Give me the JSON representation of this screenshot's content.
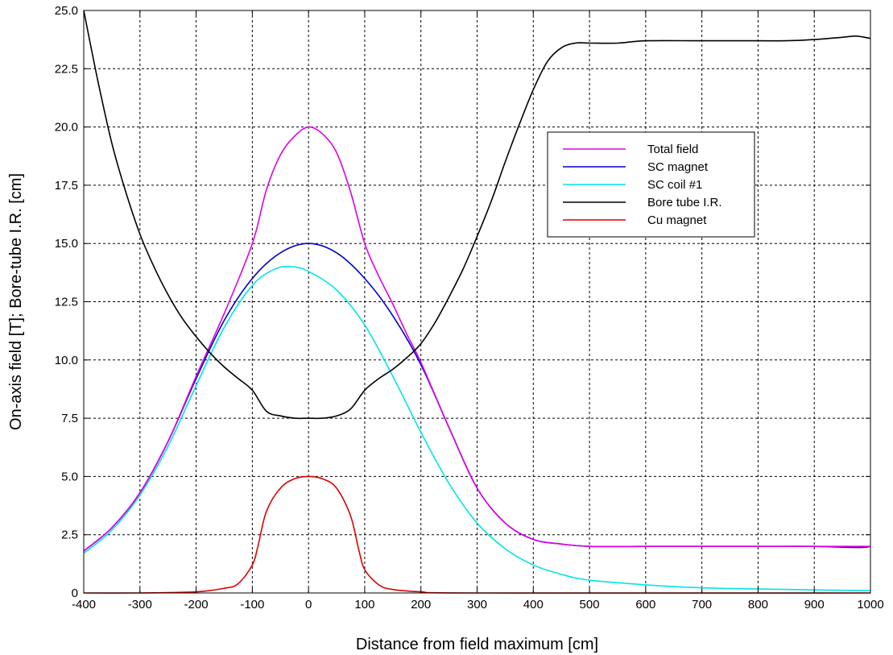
{
  "chart_data": {
    "type": "line",
    "title": "",
    "xlabel": "Distance from field maximum  [cm]",
    "ylabel": "On-axis field [T];  Bore-tube I.R. [cm]",
    "xlim": [
      -400,
      1000
    ],
    "ylim": [
      0,
      25
    ],
    "xticks": [
      -400,
      -300,
      -200,
      -100,
      0,
      100,
      200,
      300,
      400,
      500,
      600,
      700,
      800,
      900,
      1000
    ],
    "xtick_labels": [
      "-400",
      "-300",
      "-200",
      "-100",
      "0",
      "100",
      "200",
      "300",
      "400",
      "500",
      "600",
      "700",
      "800",
      "900",
      "1000"
    ],
    "yticks": [
      0,
      2.5,
      5,
      7.5,
      10,
      12.5,
      15,
      17.5,
      20,
      22.5,
      25
    ],
    "ytick_labels": [
      "0",
      "2.5",
      "5.0",
      "7.5",
      "10.0",
      "12.5",
      "15.0",
      "17.5",
      "20.0",
      "22.5",
      "25.0"
    ],
    "grid": true,
    "legend_position": "upper-right",
    "series": [
      {
        "name": "Total field",
        "color": "#e000e0",
        "points": [
          [
            -400,
            1.8
          ],
          [
            -350,
            2.8
          ],
          [
            -300,
            4.3
          ],
          [
            -250,
            6.5
          ],
          [
            -200,
            9.3
          ],
          [
            -150,
            12.0
          ],
          [
            -100,
            15.0
          ],
          [
            -75,
            17.3
          ],
          [
            -50,
            18.8
          ],
          [
            -25,
            19.6
          ],
          [
            0,
            20.0
          ],
          [
            25,
            19.7
          ],
          [
            50,
            18.9
          ],
          [
            75,
            17.2
          ],
          [
            100,
            15.0
          ],
          [
            125,
            13.6
          ],
          [
            150,
            12.4
          ],
          [
            175,
            11.1
          ],
          [
            200,
            9.9
          ],
          [
            250,
            7.1
          ],
          [
            300,
            4.5
          ],
          [
            350,
            3.0
          ],
          [
            400,
            2.3
          ],
          [
            450,
            2.1
          ],
          [
            500,
            2.0
          ],
          [
            600,
            2.0
          ],
          [
            700,
            2.0
          ],
          [
            800,
            2.0
          ],
          [
            900,
            2.0
          ],
          [
            1000,
            2.0
          ]
        ]
      },
      {
        "name": "SC magnet",
        "color": "#0000cc",
        "points": [
          [
            -400,
            1.8
          ],
          [
            -350,
            2.8
          ],
          [
            -300,
            4.3
          ],
          [
            -250,
            6.5
          ],
          [
            -200,
            9.2
          ],
          [
            -150,
            11.7
          ],
          [
            -100,
            13.5
          ],
          [
            -50,
            14.6
          ],
          [
            0,
            15.0
          ],
          [
            50,
            14.6
          ],
          [
            100,
            13.5
          ],
          [
            150,
            11.9
          ],
          [
            200,
            9.8
          ],
          [
            250,
            7.1
          ],
          [
            300,
            4.5
          ],
          [
            350,
            3.0
          ],
          [
            400,
            2.3
          ],
          [
            450,
            2.1
          ],
          [
            500,
            2.0
          ],
          [
            600,
            2.0
          ],
          [
            700,
            2.0
          ],
          [
            800,
            2.0
          ],
          [
            900,
            2.0
          ],
          [
            980,
            1.95
          ],
          [
            1000,
            2.0
          ]
        ]
      },
      {
        "name": "SC coil #1",
        "color": "#00e5e5",
        "points": [
          [
            -400,
            1.7
          ],
          [
            -350,
            2.7
          ],
          [
            -300,
            4.2
          ],
          [
            -250,
            6.3
          ],
          [
            -200,
            8.9
          ],
          [
            -150,
            11.4
          ],
          [
            -100,
            13.2
          ],
          [
            -60,
            13.9
          ],
          [
            -30,
            14.0
          ],
          [
            0,
            13.8
          ],
          [
            50,
            13.0
          ],
          [
            100,
            11.5
          ],
          [
            150,
            9.3
          ],
          [
            200,
            6.9
          ],
          [
            250,
            4.7
          ],
          [
            300,
            3.0
          ],
          [
            350,
            1.9
          ],
          [
            400,
            1.2
          ],
          [
            450,
            0.8
          ],
          [
            500,
            0.55
          ],
          [
            600,
            0.35
          ],
          [
            700,
            0.22
          ],
          [
            800,
            0.17
          ],
          [
            900,
            0.13
          ],
          [
            1000,
            0.1
          ]
        ]
      },
      {
        "name": "Bore tube I.R.",
        "color": "#000000",
        "points": [
          [
            -400,
            25.0
          ],
          [
            -375,
            22.0
          ],
          [
            -350,
            19.3
          ],
          [
            -325,
            17.2
          ],
          [
            -300,
            15.4
          ],
          [
            -275,
            14.0
          ],
          [
            -250,
            12.8
          ],
          [
            -225,
            11.8
          ],
          [
            -200,
            11.0
          ],
          [
            -175,
            10.3
          ],
          [
            -150,
            9.7
          ],
          [
            -125,
            9.2
          ],
          [
            -100,
            8.7
          ],
          [
            -75,
            7.8
          ],
          [
            -50,
            7.6
          ],
          [
            -25,
            7.5
          ],
          [
            0,
            7.5
          ],
          [
            25,
            7.5
          ],
          [
            50,
            7.6
          ],
          [
            75,
            7.9
          ],
          [
            100,
            8.7
          ],
          [
            125,
            9.2
          ],
          [
            150,
            9.6
          ],
          [
            175,
            10.1
          ],
          [
            200,
            10.7
          ],
          [
            225,
            11.6
          ],
          [
            250,
            12.7
          ],
          [
            275,
            13.9
          ],
          [
            300,
            15.3
          ],
          [
            325,
            16.8
          ],
          [
            350,
            18.5
          ],
          [
            375,
            20.1
          ],
          [
            400,
            21.6
          ],
          [
            425,
            22.8
          ],
          [
            450,
            23.4
          ],
          [
            475,
            23.6
          ],
          [
            500,
            23.6
          ],
          [
            550,
            23.6
          ],
          [
            600,
            23.7
          ],
          [
            700,
            23.7
          ],
          [
            800,
            23.7
          ],
          [
            850,
            23.7
          ],
          [
            900,
            23.75
          ],
          [
            950,
            23.85
          ],
          [
            975,
            23.9
          ],
          [
            1000,
            23.8
          ]
        ]
      },
      {
        "name": "Cu magnet",
        "color": "#dd0000",
        "points": [
          [
            -400,
            0.0
          ],
          [
            -300,
            0.0
          ],
          [
            -200,
            0.05
          ],
          [
            -150,
            0.2
          ],
          [
            -125,
            0.4
          ],
          [
            -100,
            1.2
          ],
          [
            -90,
            2.0
          ],
          [
            -75,
            3.5
          ],
          [
            -50,
            4.5
          ],
          [
            -25,
            4.9
          ],
          [
            0,
            5.0
          ],
          [
            25,
            4.9
          ],
          [
            50,
            4.5
          ],
          [
            75,
            3.3
          ],
          [
            90,
            1.8
          ],
          [
            100,
            1.0
          ],
          [
            125,
            0.35
          ],
          [
            150,
            0.15
          ],
          [
            200,
            0.05
          ],
          [
            300,
            0.0
          ],
          [
            1000,
            0.0
          ]
        ]
      }
    ]
  }
}
